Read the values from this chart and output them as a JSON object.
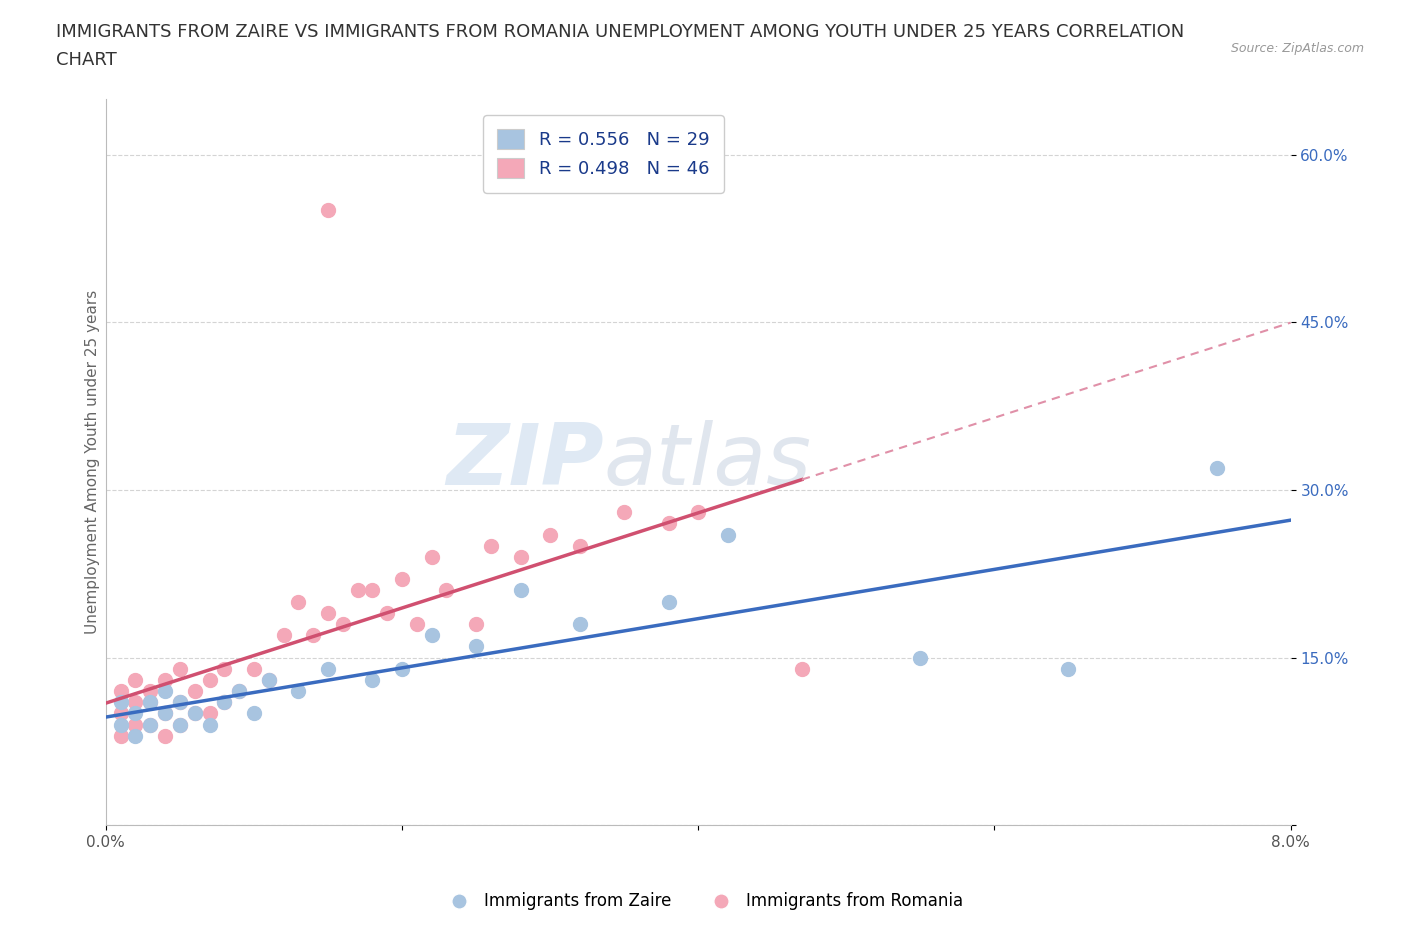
{
  "title_line1": "IMMIGRANTS FROM ZAIRE VS IMMIGRANTS FROM ROMANIA UNEMPLOYMENT AMONG YOUTH UNDER 25 YEARS CORRELATION",
  "title_line2": "CHART",
  "source_text": "Source: ZipAtlas.com",
  "ylabel": "Unemployment Among Youth under 25 years",
  "xlim": [
    0.0,
    0.08
  ],
  "ylim": [
    0.0,
    0.65
  ],
  "zaire_color": "#a8c4e0",
  "romania_color": "#f4a8b8",
  "zaire_line_color": "#3a6bbf",
  "romania_line_solid_color": "#d05070",
  "romania_line_dash_color": "#e090a8",
  "legend_label_zaire": "R = 0.556   N = 29",
  "legend_label_romania": "R = 0.498   N = 46",
  "watermark_zip": "ZIP",
  "watermark_atlas": "atlas",
  "grid_color": "#d0d0d0",
  "zaire_x": [
    0.001,
    0.001,
    0.002,
    0.002,
    0.003,
    0.003,
    0.004,
    0.004,
    0.005,
    0.005,
    0.006,
    0.007,
    0.008,
    0.009,
    0.01,
    0.011,
    0.013,
    0.015,
    0.018,
    0.02,
    0.022,
    0.025,
    0.028,
    0.032,
    0.038,
    0.042,
    0.055,
    0.065,
    0.075
  ],
  "zaire_y": [
    0.09,
    0.11,
    0.08,
    0.1,
    0.09,
    0.11,
    0.1,
    0.12,
    0.09,
    0.11,
    0.1,
    0.09,
    0.11,
    0.12,
    0.1,
    0.13,
    0.12,
    0.14,
    0.13,
    0.14,
    0.17,
    0.16,
    0.21,
    0.18,
    0.2,
    0.26,
    0.15,
    0.14,
    0.32
  ],
  "romania_x": [
    0.001,
    0.001,
    0.001,
    0.002,
    0.002,
    0.002,
    0.003,
    0.003,
    0.003,
    0.004,
    0.004,
    0.004,
    0.005,
    0.005,
    0.005,
    0.006,
    0.006,
    0.007,
    0.007,
    0.008,
    0.008,
    0.009,
    0.01,
    0.011,
    0.012,
    0.013,
    0.014,
    0.015,
    0.016,
    0.017,
    0.018,
    0.019,
    0.02,
    0.021,
    0.022,
    0.023,
    0.025,
    0.026,
    0.028,
    0.03,
    0.032,
    0.035,
    0.038,
    0.04,
    0.047,
    0.015
  ],
  "romania_y": [
    0.08,
    0.1,
    0.12,
    0.09,
    0.11,
    0.13,
    0.09,
    0.11,
    0.12,
    0.08,
    0.1,
    0.13,
    0.09,
    0.11,
    0.14,
    0.1,
    0.12,
    0.1,
    0.13,
    0.11,
    0.14,
    0.12,
    0.14,
    0.13,
    0.17,
    0.2,
    0.17,
    0.19,
    0.18,
    0.21,
    0.21,
    0.19,
    0.22,
    0.18,
    0.24,
    0.21,
    0.18,
    0.25,
    0.24,
    0.26,
    0.25,
    0.28,
    0.27,
    0.28,
    0.14,
    0.55
  ],
  "background_color": "#ffffff",
  "title_color": "#333333",
  "title_fontsize": 13,
  "axis_label_fontsize": 11,
  "tick_fontsize": 11,
  "legend_text_color": "#1a3a8a",
  "right_tick_color": "#3a6bbf"
}
